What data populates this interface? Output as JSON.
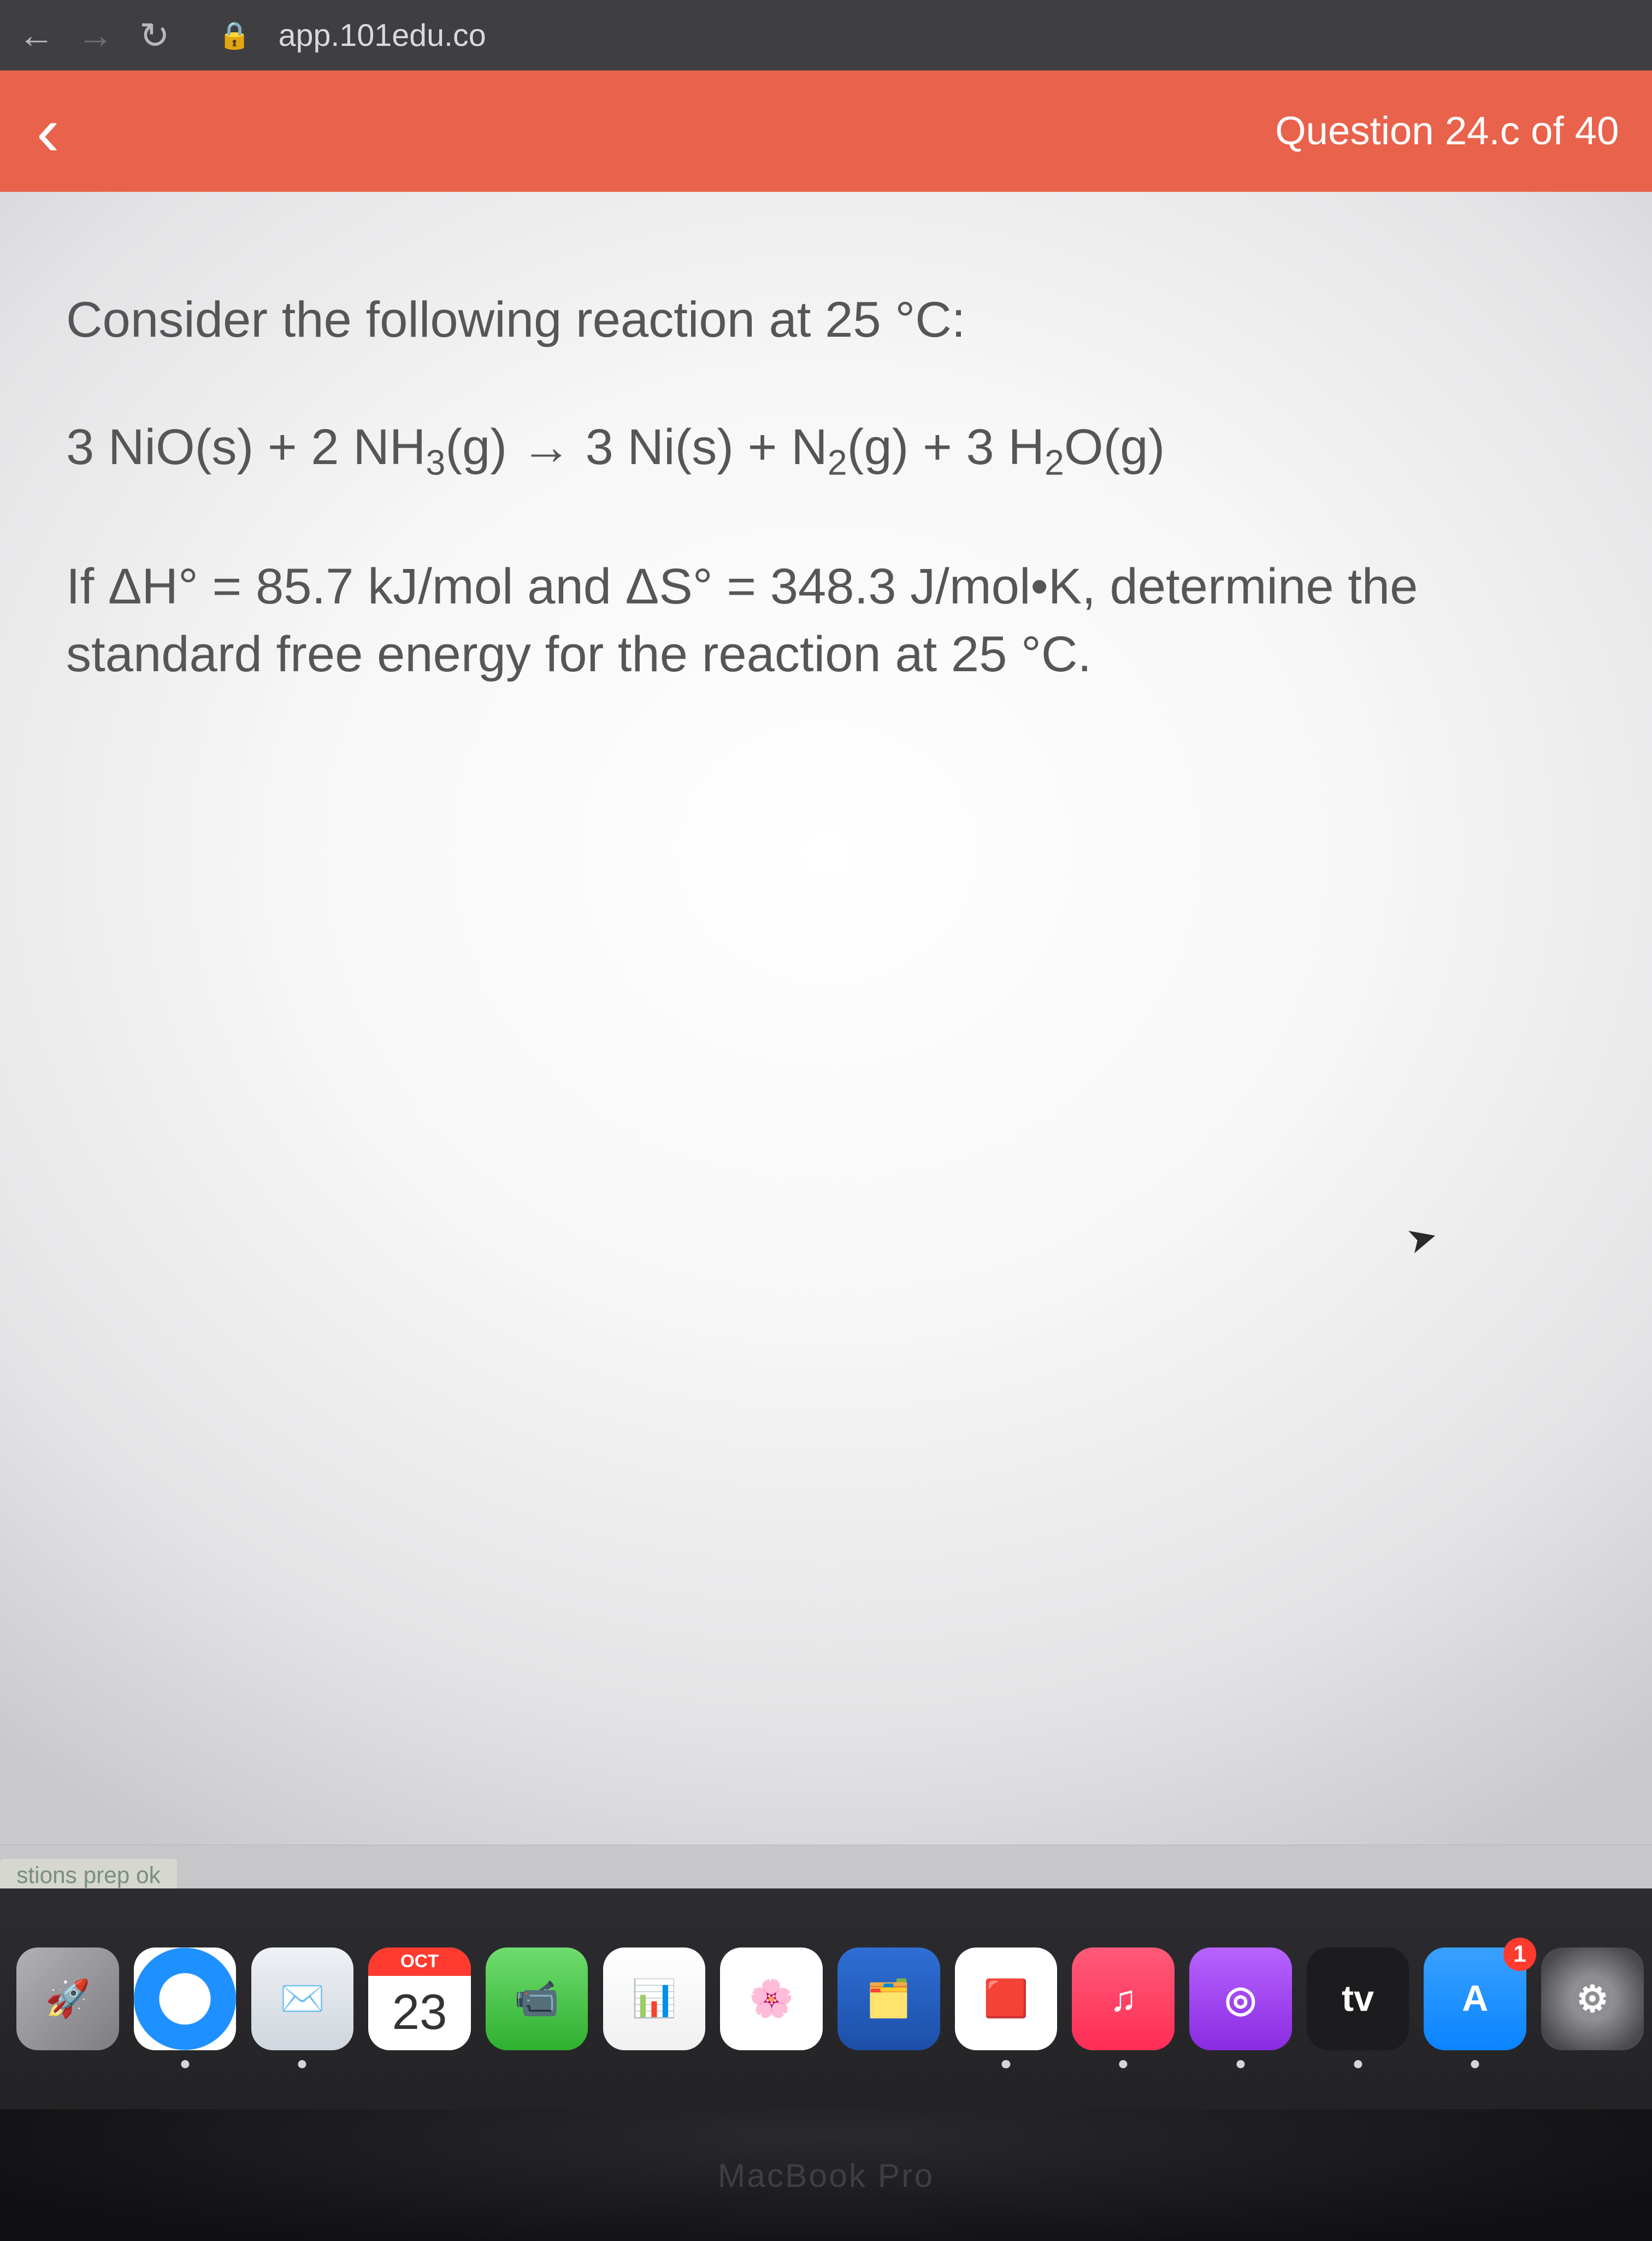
{
  "browser": {
    "url": "app.101edu.co",
    "back_icon": "←",
    "forward_icon": "→",
    "reload_icon": "↻",
    "lock_icon": "🔒"
  },
  "header": {
    "back_chevron": "‹",
    "title": "Question 24.c of 40",
    "bg_color": "#e9624c",
    "text_color": "#ffffff"
  },
  "question": {
    "prompt": "Consider the following reaction at 25 °C:",
    "equation_html": "3 NiO(s) + 2 NH<sub>3</sub>(g) → 3 Ni(s) + N<sub>2</sub>(g) + 3 H<sub>2</sub>O(g)",
    "given_html": "If ΔH° = 85.7 kJ/mol and ΔS° = 348.3 J/mol•K, determine the standard free energy for the reaction at 25 °C.",
    "text_color": "#565658",
    "bg_color": "#ffffff",
    "font_size_vw": 3.05
  },
  "tab_sliver": {
    "text": "stions prep ok"
  },
  "dock": {
    "items": [
      {
        "name": "launchpad",
        "bg": "linear-gradient(135deg,#b0b0b5,#7d7d82)",
        "glyph": "🚀",
        "running": false
      },
      {
        "name": "safari",
        "bg": "radial-gradient(circle,#ffffff 35%,#1e90ff 36%,#1e90ff 70%,#fff 71%)",
        "glyph": "",
        "running": true
      },
      {
        "name": "mail",
        "bg": "linear-gradient(#eef1f5,#cfd6dd)",
        "glyph": "✉️",
        "running": true
      },
      {
        "name": "calendar",
        "type": "calendar",
        "month": "OCT",
        "day": "23",
        "running": false
      },
      {
        "name": "facetime",
        "bg": "linear-gradient(#6fdc6f,#2fb02f)",
        "glyph": "📹",
        "running": false
      },
      {
        "name": "numbers",
        "bg": "linear-gradient(#ffffff,#f0f0f0)",
        "glyph": "📊",
        "running": false
      },
      {
        "name": "photos",
        "bg": "#ffffff",
        "glyph": "🌸",
        "running": false
      },
      {
        "name": "keynote",
        "bg": "linear-gradient(#2e6fd6,#1d4fa8)",
        "glyph": "🗂️",
        "running": false
      },
      {
        "name": "shortcuts",
        "bg": "#ffffff",
        "glyph": "🟥",
        "running": true
      },
      {
        "name": "music",
        "bg": "linear-gradient(#ff5a78,#ff2d55)",
        "glyph": "♫",
        "running": true
      },
      {
        "name": "podcasts",
        "bg": "linear-gradient(#b863ff,#8a2be2)",
        "glyph": "◎",
        "running": true
      },
      {
        "name": "appletv",
        "bg": "#1c1c1e",
        "glyph": "tv",
        "running": true
      },
      {
        "name": "appstore",
        "bg": "linear-gradient(#39a0ff,#0a84ff)",
        "glyph": "A",
        "running": true,
        "badge": "1"
      },
      {
        "name": "settings",
        "bg": "radial-gradient(circle,#8e8e93 30%,#4a4a4e 80%)",
        "glyph": "⚙︎",
        "running": false
      },
      {
        "name": "help",
        "bg": "transparent",
        "glyph": "?",
        "running": false,
        "text_color": "#8e8e93",
        "font_size": "5vw"
      }
    ]
  },
  "bezel": {
    "text": "MacBook Pro"
  },
  "colors": {
    "browser_bar_bg": "#3f3f42",
    "browser_text": "#d9d9db",
    "dock_bg": "#2a2a2d",
    "bezel_bg": "#151517"
  }
}
